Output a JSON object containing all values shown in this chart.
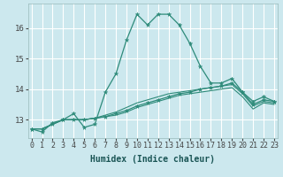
{
  "title": "",
  "xlabel": "Humidex (Indice chaleur)",
  "ylabel": "",
  "background_color": "#cce8ee",
  "grid_color": "#ffffff",
  "line_color": "#2e8b7a",
  "x_values": [
    0,
    1,
    2,
    3,
    4,
    5,
    6,
    7,
    8,
    9,
    10,
    11,
    12,
    13,
    14,
    15,
    16,
    17,
    18,
    19,
    20,
    21,
    22,
    23
  ],
  "series1": [
    12.7,
    12.6,
    12.9,
    13.0,
    13.2,
    12.75,
    12.85,
    13.9,
    14.5,
    15.6,
    16.45,
    16.1,
    16.45,
    16.45,
    16.1,
    15.5,
    14.75,
    14.2,
    14.2,
    14.35,
    13.9,
    13.6,
    13.75,
    13.6
  ],
  "series2": [
    12.7,
    12.7,
    12.85,
    13.0,
    13.0,
    13.0,
    13.05,
    13.1,
    13.2,
    13.3,
    13.45,
    13.55,
    13.65,
    13.75,
    13.85,
    13.9,
    14.0,
    14.05,
    14.1,
    14.2,
    13.9,
    13.5,
    13.65,
    13.6
  ],
  "series3": [
    12.7,
    12.7,
    12.85,
    13.0,
    13.0,
    13.0,
    13.05,
    13.15,
    13.25,
    13.4,
    13.55,
    13.65,
    13.75,
    13.85,
    13.9,
    13.95,
    14.0,
    14.05,
    14.1,
    14.15,
    13.85,
    13.45,
    13.6,
    13.55
  ],
  "series4": [
    12.7,
    12.7,
    12.85,
    13.0,
    13.0,
    13.0,
    13.05,
    13.1,
    13.15,
    13.25,
    13.4,
    13.5,
    13.6,
    13.7,
    13.8,
    13.85,
    13.9,
    13.95,
    14.0,
    14.05,
    13.75,
    13.35,
    13.55,
    13.5
  ],
  "ylim": [
    12.4,
    16.8
  ],
  "yticks": [
    13,
    14,
    15,
    16
  ],
  "xticks": [
    0,
    1,
    2,
    3,
    4,
    5,
    6,
    7,
    8,
    9,
    10,
    11,
    12,
    13,
    14,
    15,
    16,
    17,
    18,
    19,
    20,
    21,
    22,
    23
  ],
  "tick_fontsize": 6,
  "xlabel_fontsize": 7
}
